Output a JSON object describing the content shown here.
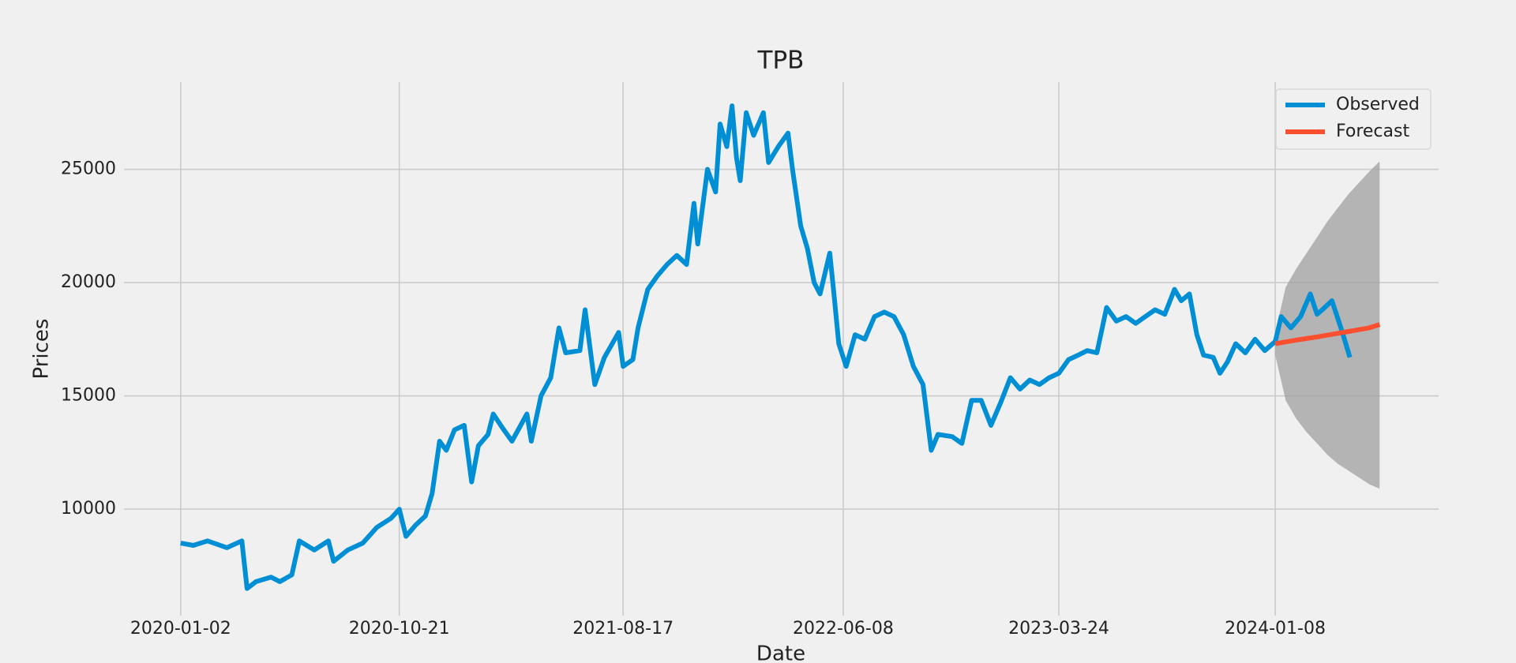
{
  "chart_data": {
    "type": "line",
    "title": "TPB",
    "x_label": "Date",
    "y_label": "Prices",
    "xlim": [
      "2019-10-18",
      "2024-08-14"
    ],
    "xticks": [
      "2020-01-02",
      "2020-10-21",
      "2021-08-17",
      "2022-06-08",
      "2023-03-24",
      "2024-01-08"
    ],
    "ylim": [
      5300,
      28850
    ],
    "yticks": [
      10000,
      15000,
      20000,
      25000
    ],
    "grid": true,
    "legend": "upper right",
    "series": [
      {
        "name": "Observed",
        "color": "#008fd5",
        "x": [
          "2020-01-02",
          "2020-01-19",
          "2020-02-07",
          "2020-03-04",
          "2020-03-24",
          "2020-03-31",
          "2020-04-12",
          "2020-05-02",
          "2020-05-14",
          "2020-05-30",
          "2020-06-09",
          "2020-06-29",
          "2020-07-18",
          "2020-07-25",
          "2020-08-13",
          "2020-09-02",
          "2020-09-21",
          "2020-10-10",
          "2020-10-21",
          "2020-10-30",
          "2020-11-12",
          "2020-11-25",
          "2020-12-04",
          "2020-12-14",
          "2020-12-23",
          "2021-01-03",
          "2021-01-16",
          "2021-01-26",
          "2021-02-04",
          "2021-02-17",
          "2021-02-24",
          "2021-03-08",
          "2021-03-21",
          "2021-04-10",
          "2021-04-16",
          "2021-04-29",
          "2021-05-12",
          "2021-05-23",
          "2021-06-01",
          "2021-06-20",
          "2021-06-27",
          "2021-07-10",
          "2021-07-23",
          "2021-08-11",
          "2021-08-17",
          "2021-08-30",
          "2021-09-06",
          "2021-09-19",
          "2021-10-02",
          "2021-10-15",
          "2021-10-28",
          "2021-11-10",
          "2021-11-20",
          "2021-11-25",
          "2021-12-08",
          "2021-12-19",
          "2021-12-25",
          "2022-01-03",
          "2022-01-10",
          "2022-01-16",
          "2022-01-21",
          "2022-01-29",
          "2022-02-08",
          "2022-02-21",
          "2022-02-28",
          "2022-03-13",
          "2022-03-26",
          "2022-04-01",
          "2022-04-12",
          "2022-04-21",
          "2022-04-30",
          "2022-05-08",
          "2022-05-21",
          "2022-05-26",
          "2022-06-02",
          "2022-06-12",
          "2022-06-24",
          "2022-07-07",
          "2022-07-20",
          "2022-08-02",
          "2022-08-15",
          "2022-08-28",
          "2022-09-10",
          "2022-09-23",
          "2022-10-04",
          "2022-10-13",
          "2022-11-01",
          "2022-11-14",
          "2022-11-27",
          "2022-12-10",
          "2022-12-23",
          "2023-01-05",
          "2023-01-18",
          "2023-01-31",
          "2023-02-13",
          "2023-02-26",
          "2023-03-11",
          "2023-03-24",
          "2023-04-06",
          "2023-04-19",
          "2023-05-01",
          "2023-05-14",
          "2023-05-27",
          "2023-06-09",
          "2023-06-22",
          "2023-07-05",
          "2023-07-18",
          "2023-07-31",
          "2023-08-13",
          "2023-08-26",
          "2023-09-04",
          "2023-09-15",
          "2023-09-25",
          "2023-10-04",
          "2023-10-17",
          "2023-10-26",
          "2023-11-05",
          "2023-11-16",
          "2023-11-29",
          "2023-12-12",
          "2023-12-25",
          "2024-01-08",
          "2024-01-16",
          "2024-01-29",
          "2024-02-11",
          "2024-02-24",
          "2024-03-04",
          "2024-03-11",
          "2024-03-24",
          "2024-04-06",
          "2024-04-17"
        ],
        "values": [
          8500,
          8400,
          8600,
          8300,
          8600,
          6500,
          6800,
          7000,
          6800,
          7100,
          8600,
          8200,
          8600,
          7700,
          8200,
          8500,
          9200,
          9600,
          10000,
          8800,
          9300,
          9700,
          10700,
          13000,
          12600,
          13500,
          13700,
          11200,
          12800,
          13300,
          14200,
          13600,
          13000,
          14200,
          13000,
          15000,
          15800,
          18000,
          16900,
          17000,
          18800,
          15500,
          16700,
          17800,
          16300,
          16600,
          18000,
          19700,
          20300,
          20800,
          21200,
          20800,
          23500,
          21700,
          25000,
          24000,
          27000,
          26000,
          27800,
          25500,
          24500,
          27500,
          26500,
          27500,
          25300,
          26000,
          26600,
          25000,
          22500,
          21500,
          20000,
          19500,
          21300,
          19700,
          17300,
          16300,
          17700,
          17500,
          18500,
          18700,
          18500,
          17700,
          16300,
          15500,
          12600,
          13300,
          13200,
          12900,
          14800,
          14800,
          13700,
          14700,
          15800,
          15300,
          15700,
          15500,
          15800,
          16000,
          16600,
          16800,
          17000,
          16900,
          18900,
          18300,
          18500,
          18200,
          18500,
          18800,
          18600,
          19700,
          19200,
          19500,
          17700,
          16800,
          16700,
          16000,
          16500,
          17300,
          16900,
          17500,
          17000,
          17400,
          18500,
          18000,
          18500,
          19500,
          18600,
          18800,
          19200,
          17900,
          16700
        ]
      },
      {
        "name": "Forecast",
        "color": "#fc4f30",
        "band_color": "#a0a0a0",
        "x": [
          "2024-01-08",
          "2024-01-22",
          "2024-02-05",
          "2024-02-19",
          "2024-03-04",
          "2024-03-18",
          "2024-04-01",
          "2024-04-15",
          "2024-04-29",
          "2024-05-13",
          "2024-05-27"
        ],
        "values": [
          17300,
          17380,
          17460,
          17530,
          17600,
          17680,
          17760,
          17840,
          17920,
          18000,
          18150
        ],
        "lower": [
          16800,
          14800,
          14000,
          13400,
          12900,
          12400,
          12000,
          11700,
          11400,
          11100,
          10900
        ],
        "upper": [
          17800,
          19800,
          20600,
          21300,
          22000,
          22700,
          23300,
          23900,
          24400,
          24900,
          25350
        ]
      }
    ]
  }
}
